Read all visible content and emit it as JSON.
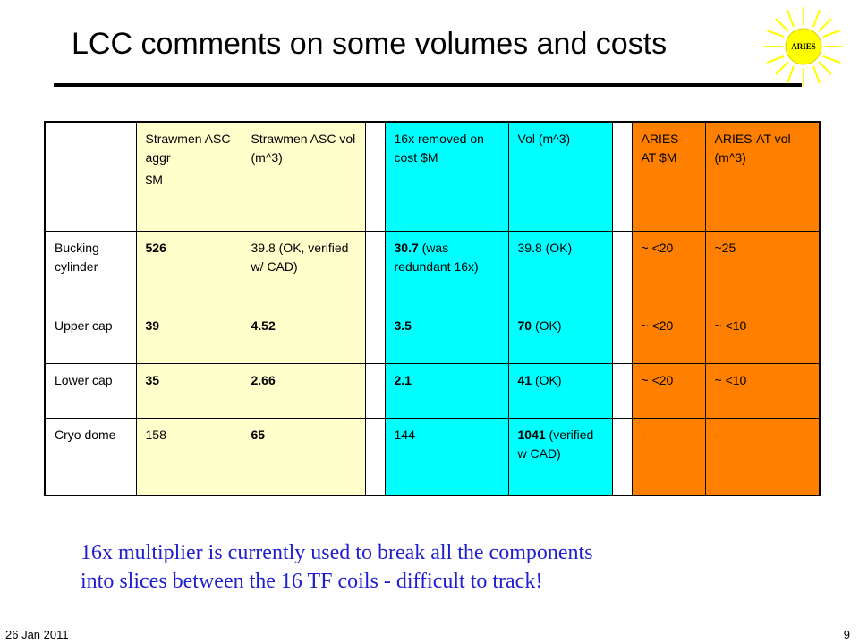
{
  "slide": {
    "title": "LCC comments on some volumes and costs",
    "logo_text": "ARIES",
    "note_lines": [
      "16x multiplier is currently used to break all the components",
      "into slices between the 16 TF coils - difficult to track!"
    ],
    "footer_date": "26 Jan 2011",
    "page_number": "9"
  },
  "colors": {
    "cream": "#ffffcc",
    "cyan": "#00ffff",
    "orange": "#ff8000",
    "note_text": "#1f1fd0",
    "sun": "#ffff00"
  },
  "table": {
    "headers": {
      "strawmen_aggr": [
        "Strawmen ASC aggr",
        "$M"
      ],
      "strawmen_vol": "Strawmen ASC vol (m^3)",
      "removed_cost": "16x removed on cost $M",
      "vol": "Vol (m^3)",
      "aries_cost": "ARIES-AT $M",
      "aries_vol": "ARIES-AT vol (m^3)"
    },
    "rows": [
      {
        "label": "Bucking cylinder",
        "aggr": "526",
        "vol": "39.8 (OK, verified w/ CAD)",
        "removed_bold": "30.7",
        "removed_rest": " (was redundant 16x)",
        "vol2_bold": "",
        "vol2_rest": "39.8 (OK)",
        "aries_cost": "~ <20",
        "aries_vol": "~25"
      },
      {
        "label": "Upper cap",
        "aggr": "39",
        "vol": "4.52",
        "removed_bold": "3.5",
        "removed_rest": "",
        "vol2_bold": "70",
        "vol2_rest": " (OK)",
        "aries_cost": "~ <20",
        "aries_vol": "~ <10"
      },
      {
        "label": "Lower cap",
        "aggr": "35",
        "vol": "2.66",
        "removed_bold": "2.1",
        "removed_rest": "",
        "vol2_bold": "41",
        "vol2_rest": " (OK)",
        "aries_cost": "~ <20",
        "aries_vol": "~ <10"
      },
      {
        "label": "Cryo dome",
        "aggr": "158",
        "vol": "65",
        "removed_bold": "",
        "removed_rest": "144",
        "vol2_bold": "1041",
        "vol2_rest": " (verified w CAD)",
        "aries_cost": "-",
        "aries_vol": "-"
      }
    ]
  }
}
